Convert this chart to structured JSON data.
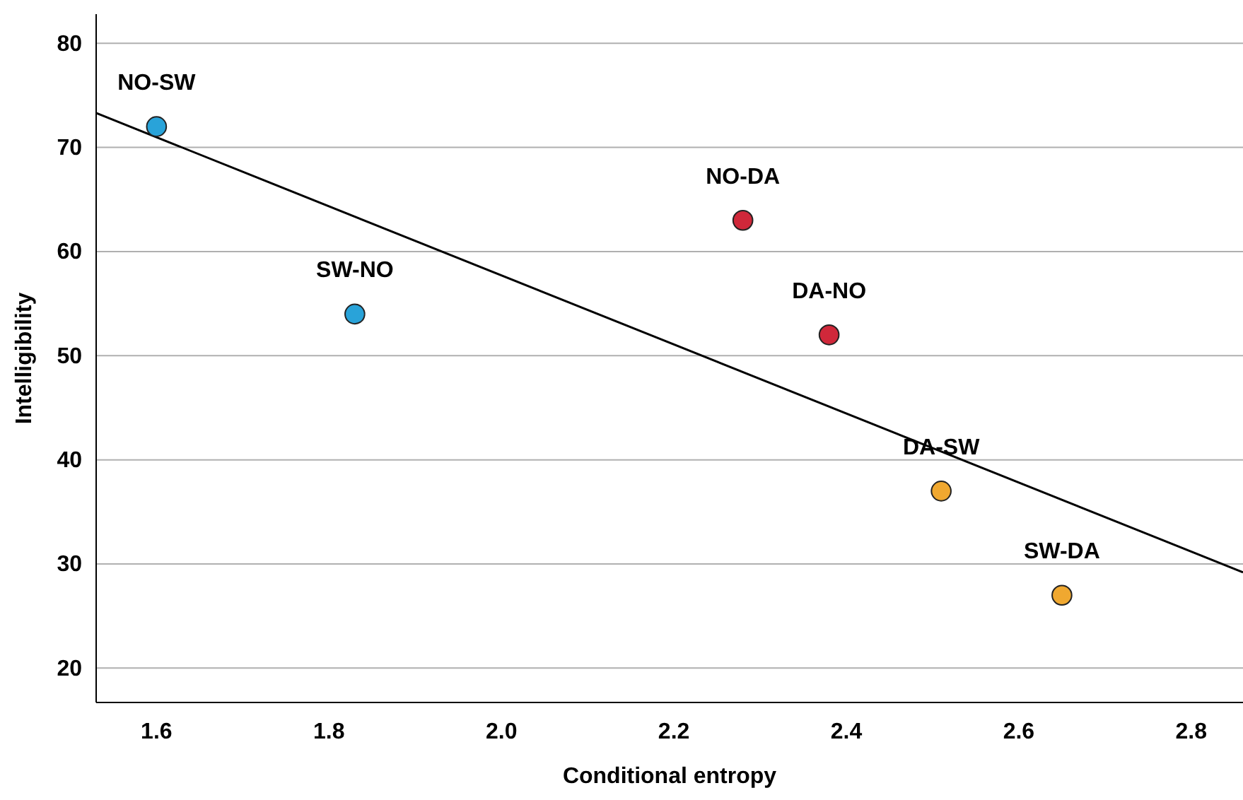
{
  "chart_data": {
    "type": "scatter",
    "xlabel": "Conditional entropy",
    "ylabel": "Intelligibility",
    "xlim": [
      1.53,
      2.86
    ],
    "xticks": [
      {
        "value": 1.6,
        "label": "1.6"
      },
      {
        "value": 1.8,
        "label": "1.8"
      },
      {
        "value": 2.0,
        "label": "2.0"
      },
      {
        "value": 2.2,
        "label": "2.2"
      },
      {
        "value": 2.4,
        "label": "2.4"
      },
      {
        "value": 2.6,
        "label": "2.6"
      },
      {
        "value": 2.8,
        "label": "2.8"
      }
    ],
    "ylim": [
      16.7,
      82.8
    ],
    "yticks": [
      20,
      30,
      40,
      50,
      60,
      70,
      80
    ],
    "grid": "y",
    "series": [
      {
        "type": "scatter",
        "x": [
          1.6,
          1.83,
          2.28,
          2.38,
          2.51,
          2.65
        ],
        "values": [
          72,
          54,
          63,
          52,
          37,
          27
        ],
        "colors": [
          "#29a3d9",
          "#29a3d9",
          "#d0283a",
          "#d0283a",
          "#f0a830",
          "#f0a830"
        ],
        "marker": "circle"
      },
      {
        "type": "line",
        "x": [
          1.53,
          2.86
        ],
        "values": [
          73.3,
          29.2
        ],
        "color": "#000000"
      }
    ],
    "annotations": [
      {
        "text": "NO-SW",
        "x": 1.6,
        "y": 72
      },
      {
        "text": "SW-NO",
        "x": 1.83,
        "y": 54
      },
      {
        "text": "NO-DA",
        "x": 2.28,
        "y": 63
      },
      {
        "text": "DA-NO",
        "x": 2.38,
        "y": 52
      },
      {
        "text": "DA-SW",
        "x": 2.51,
        "y": 37
      },
      {
        "text": "SW-DA",
        "x": 2.65,
        "y": 27
      }
    ]
  }
}
